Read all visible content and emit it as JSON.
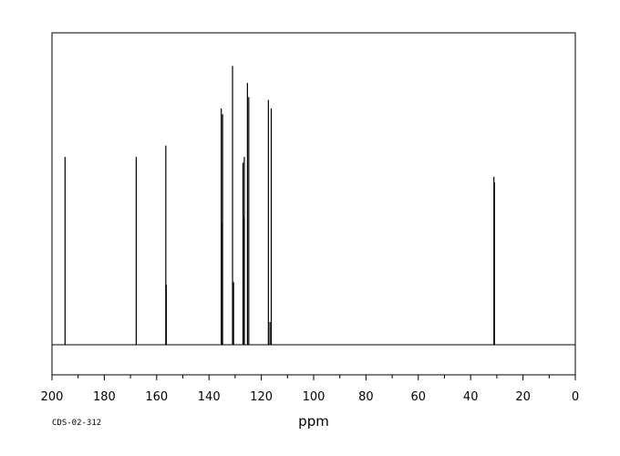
{
  "chart_data": {
    "type": "line",
    "title": "",
    "xlabel": "ppm",
    "ylabel": "",
    "xlim": [
      200,
      0
    ],
    "x_reversed": true,
    "x_ticks": [
      200,
      180,
      160,
      140,
      120,
      100,
      80,
      60,
      40,
      20,
      0
    ],
    "ylim": [
      0,
      1.0
    ],
    "grid": false,
    "legend": "none",
    "code": "CDS-02-312",
    "line_color": "#000000",
    "peaks": [
      {
        "ppm": 195.0,
        "intensity": 0.66
      },
      {
        "ppm": 167.8,
        "intensity": 0.66
      },
      {
        "ppm": 156.5,
        "intensity": 0.7
      },
      {
        "ppm": 156.3,
        "intensity": 0.21
      },
      {
        "ppm": 135.3,
        "intensity": 0.83
      },
      {
        "ppm": 134.8,
        "intensity": 0.81
      },
      {
        "ppm": 134.9,
        "intensity": 0.43
      },
      {
        "ppm": 131.0,
        "intensity": 0.98
      },
      {
        "ppm": 130.6,
        "intensity": 0.22
      },
      {
        "ppm": 127.0,
        "intensity": 0.64
      },
      {
        "ppm": 126.5,
        "intensity": 0.66
      },
      {
        "ppm": 126.8,
        "intensity": 0.45
      },
      {
        "ppm": 125.3,
        "intensity": 0.92
      },
      {
        "ppm": 124.8,
        "intensity": 0.87
      },
      {
        "ppm": 117.3,
        "intensity": 0.86
      },
      {
        "ppm": 116.2,
        "intensity": 0.83
      },
      {
        "ppm": 116.7,
        "intensity": 0.08
      },
      {
        "ppm": 31.1,
        "intensity": 0.59
      },
      {
        "ppm": 30.9,
        "intensity": 0.57
      }
    ]
  }
}
